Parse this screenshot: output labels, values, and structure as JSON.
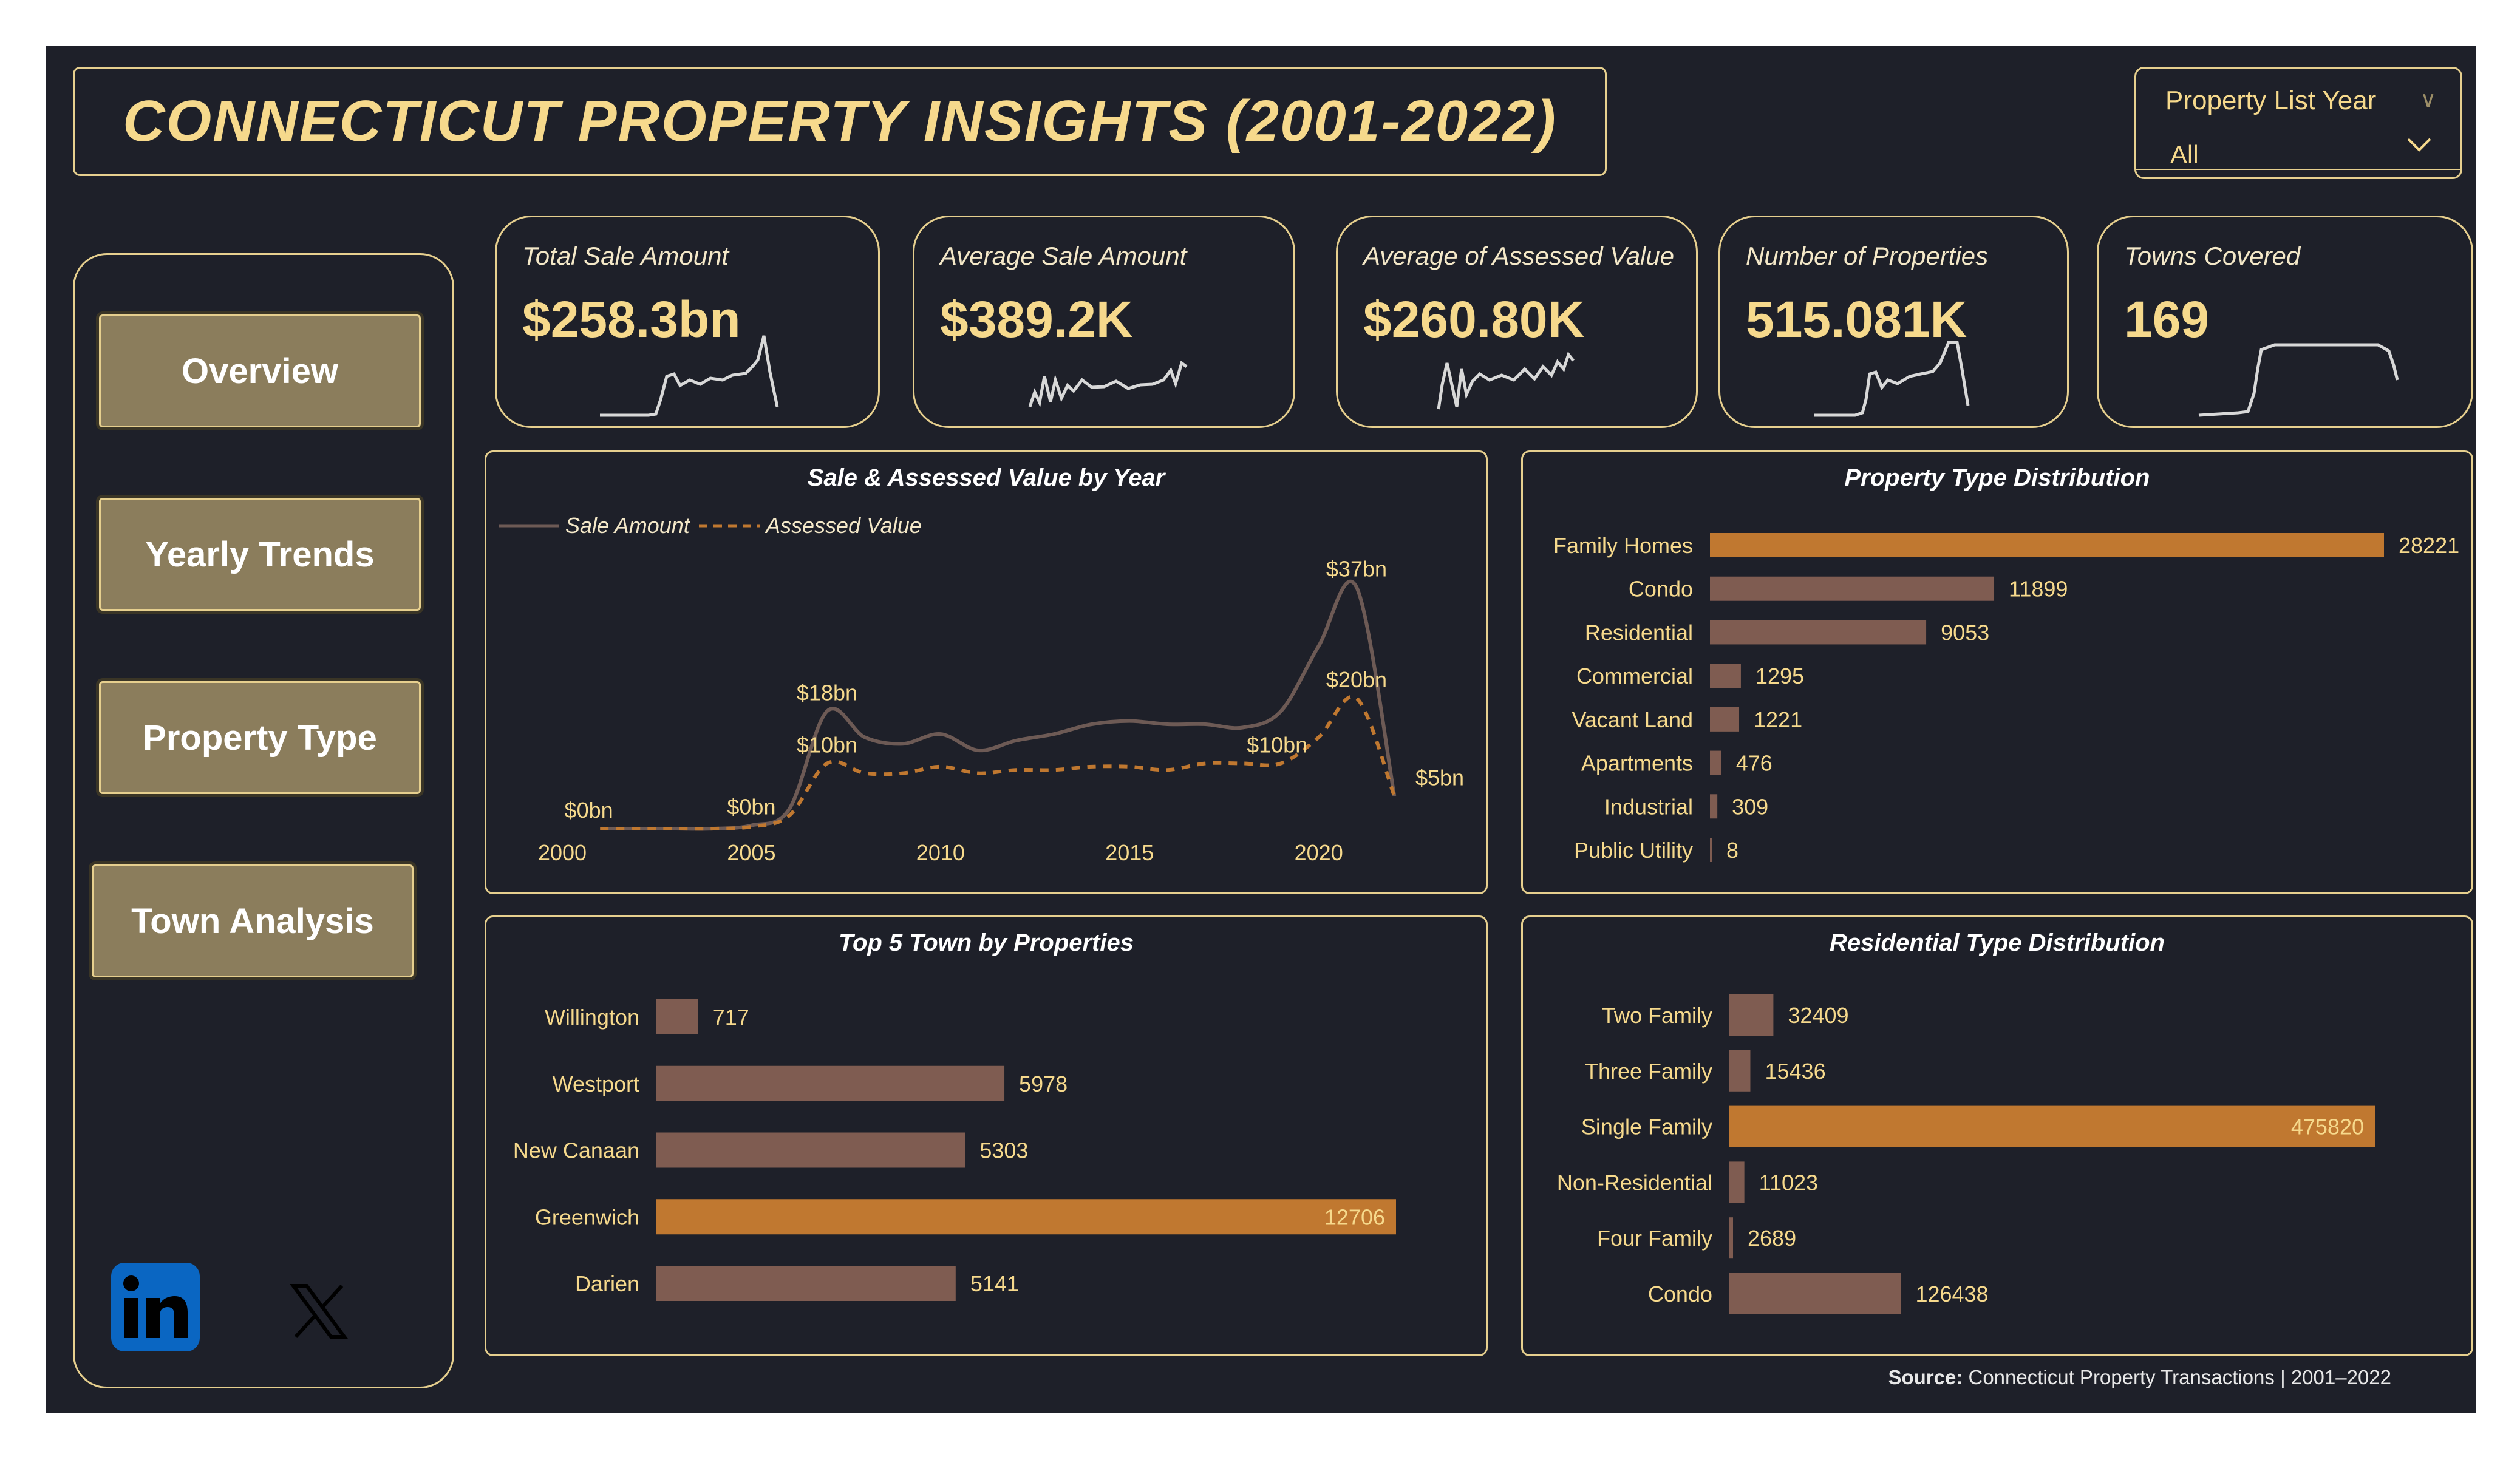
{
  "header": {
    "title": "CONNECTICUT PROPERTY INSIGHTS (2001-2022)"
  },
  "filter": {
    "label": "Property List Year",
    "value": "All"
  },
  "nav": [
    {
      "label": "Overview"
    },
    {
      "label": "Yearly Trends"
    },
    {
      "label": "Property Type"
    },
    {
      "label": "Town Analysis"
    }
  ],
  "kpis": [
    {
      "label": "Total Sale Amount",
      "value": "$258.3bn"
    },
    {
      "label": "Average Sale Amount",
      "value": "$389.2K"
    },
    {
      "label": "Average of Assessed Value",
      "value": "$260.80K"
    },
    {
      "label": "Number of Properties",
      "value": "515.081K"
    },
    {
      "label": "Towns Covered",
      "value": "169"
    }
  ],
  "social": {
    "linkedin_icon": "linkedin-icon",
    "x_icon": "x-icon"
  },
  "footer": {
    "source_label": "Source:",
    "source_text": "Connecticut Property Transactions | 2001–2022"
  },
  "colors": {
    "background": "#1e2029",
    "accent_gold": "#f6d98c",
    "border": "#e6cf8e",
    "bar_brown": "#7f5c51",
    "bar_highlight": "#c07830",
    "nav_button": "#8b7d5c"
  },
  "chart_data": [
    {
      "type": "line",
      "title": "Sale & Assessed Value by Year",
      "x": [
        2001,
        2002,
        2003,
        2004,
        2005,
        2006,
        2007,
        2008,
        2009,
        2010,
        2011,
        2012,
        2013,
        2014,
        2015,
        2016,
        2017,
        2018,
        2019,
        2020,
        2021,
        2022
      ],
      "xticks": [
        "2000",
        "2005",
        "2010",
        "2015",
        "2020"
      ],
      "series": [
        {
          "name": "Sale Amount",
          "values": [
            0,
            0,
            0,
            0,
            0.5,
            3,
            18,
            14,
            13,
            14.5,
            12,
            13.5,
            14.5,
            16,
            16.5,
            16,
            16,
            15.5,
            18,
            28,
            37,
            5
          ],
          "style": "solid",
          "color": "#6d5a55"
        },
        {
          "name": "Assessed Value",
          "values": [
            0,
            0,
            0,
            0,
            0.3,
            2,
            10,
            8.5,
            8.5,
            9.5,
            8.5,
            9,
            9,
            9.5,
            9.5,
            9,
            10,
            10,
            10,
            14,
            20,
            5
          ],
          "style": "dashed",
          "color": "#c07830"
        }
      ],
      "annotations": [
        {
          "text": "$0bn",
          "x": 2000.7,
          "y": 0
        },
        {
          "text": "$0bn",
          "x": 2005,
          "y": 0.5
        },
        {
          "text": "$18bn",
          "x": 2007,
          "y": 18
        },
        {
          "text": "$10bn",
          "x": 2007,
          "y": 10
        },
        {
          "text": "$10bn",
          "x": 2018.9,
          "y": 10
        },
        {
          "text": "$37bn",
          "x": 2021,
          "y": 37
        },
        {
          "text": "$20bn",
          "x": 2021,
          "y": 20
        },
        {
          "text": "$5bn",
          "x": 2023.2,
          "y": 5
        }
      ],
      "xlim": [
        2000,
        2023.2
      ],
      "ylim": [
        0,
        40
      ]
    },
    {
      "type": "bar",
      "orientation": "horizontal",
      "title": "Property Type Distribution",
      "categories": [
        "Family Homes",
        "Condo",
        "Residential",
        "Commercial",
        "Vacant Land",
        "Apartments",
        "Industrial",
        "Public Utility"
      ],
      "values": [
        28221,
        11899,
        9053,
        1295,
        1221,
        476,
        309,
        8
      ],
      "highlight": "Family Homes"
    },
    {
      "type": "bar",
      "orientation": "horizontal",
      "title": "Top 5 Town by Properties",
      "categories": [
        "Willington",
        "Westport",
        "New Canaan",
        "Greenwich",
        "Darien"
      ],
      "values": [
        717,
        5978,
        5303,
        12706,
        5141
      ],
      "highlight": "Greenwich"
    },
    {
      "type": "bar",
      "orientation": "horizontal",
      "title": "Residential Type Distribution",
      "categories": [
        "Two Family",
        "Three Family",
        "Single Family",
        "Non-Residential",
        "Four Family",
        "Condo"
      ],
      "values": [
        32409,
        15436,
        475820,
        11023,
        2689,
        126438
      ],
      "highlight": "Single Family"
    }
  ]
}
